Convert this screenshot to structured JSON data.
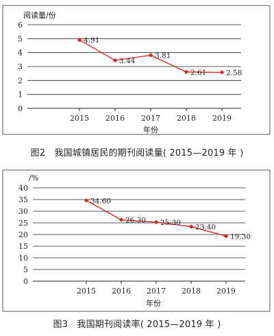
{
  "chart_data": [
    {
      "type": "line",
      "ylabel": "阅读量/份",
      "xlabel": "年份",
      "categories": [
        "2015",
        "2016",
        "2017",
        "2018",
        "2019"
      ],
      "values": [
        4.91,
        3.44,
        3.81,
        2.61,
        2.58
      ],
      "data_labels": [
        "4.91",
        "3.44",
        "3.81",
        "2.61",
        "2.58"
      ],
      "ylim": [
        0,
        6
      ],
      "yticks": [
        "0",
        "1",
        "2",
        "3",
        "4",
        "5",
        "6"
      ],
      "grid": true,
      "color": "#d8201c",
      "caption": "图2　我国城镇居民的期刊阅读量( 2015—2019 年 )"
    },
    {
      "type": "line",
      "ylabel": "/%",
      "xlabel": "年份",
      "categories": [
        "2015",
        "2016",
        "2017",
        "2018",
        "2019"
      ],
      "values": [
        34.6,
        26.3,
        25.3,
        23.4,
        19.3
      ],
      "data_labels": [
        "34.60",
        "26.30",
        "25.30",
        "23.40",
        "19.30"
      ],
      "ylim": [
        0,
        40
      ],
      "yticks": [
        "0",
        "5",
        "10",
        "15",
        "20",
        "25",
        "30",
        "35",
        "40"
      ],
      "grid": true,
      "color": "#d8201c",
      "caption": "图3　我国期刊阅读率( 2015—2019 年 )"
    }
  ]
}
